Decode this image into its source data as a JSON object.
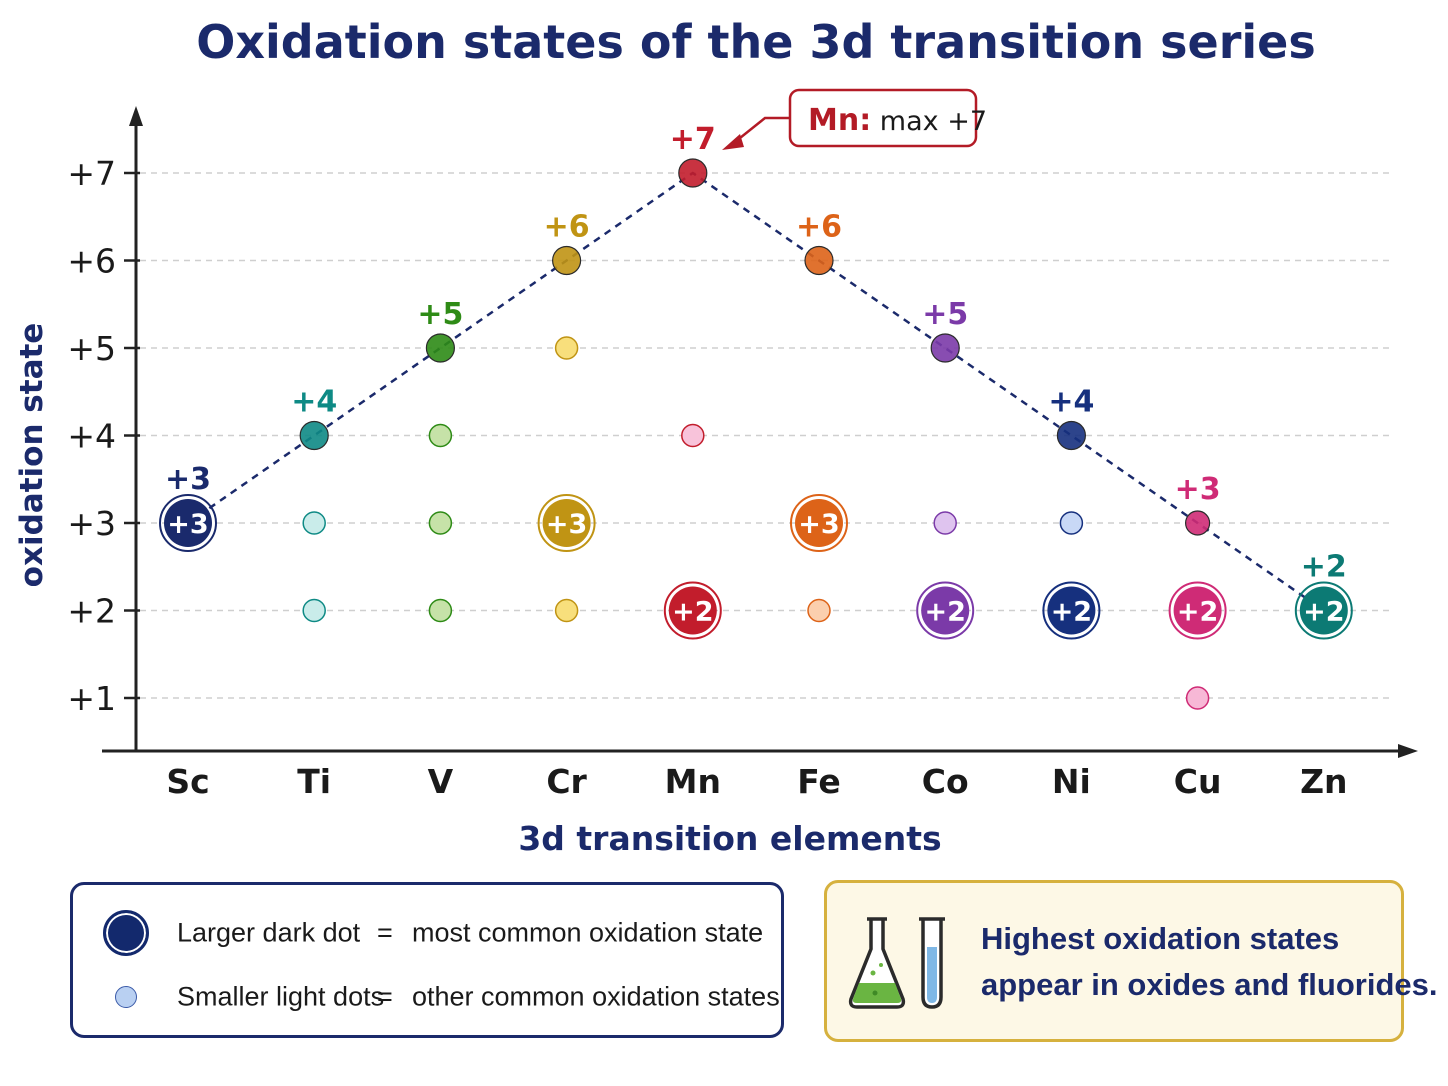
{
  "chart_data": {
    "type": "scatter",
    "title": "Oxidation states of the 3d transition series",
    "xlabel": "3d transition elements",
    "ylabel": "oxidation state",
    "categories": [
      "Sc",
      "Ti",
      "V",
      "Cr",
      "Mn",
      "Fe",
      "Co",
      "Ni",
      "Cu",
      "Zn"
    ],
    "y_ticks": [
      "+1",
      "+2",
      "+3",
      "+4",
      "+5",
      "+6",
      "+7"
    ],
    "ylim": [
      1,
      7
    ],
    "grid": true,
    "elements": [
      {
        "symbol": "Sc",
        "color": "#1a2a6c",
        "light": "#b8c4e8",
        "most_common": 3,
        "max": 3,
        "max_label": "+3",
        "other_states": []
      },
      {
        "symbol": "Ti",
        "color": "#0e8a85",
        "light": "#c9ecea",
        "most_common": null,
        "max": 4,
        "max_label": "+4",
        "other_states": [
          3,
          2
        ]
      },
      {
        "symbol": "V",
        "color": "#2e8b16",
        "light": "#c6e2a8",
        "most_common": null,
        "max": 5,
        "max_label": "+5",
        "other_states": [
          4,
          3,
          2
        ]
      },
      {
        "symbol": "Cr",
        "color": "#c09414",
        "light": "#f8df7c",
        "most_common": 3,
        "max": 6,
        "max_label": "+6",
        "other_states": [
          5,
          2
        ]
      },
      {
        "symbol": "Mn",
        "color": "#c21d2c",
        "light": "#f8c3da",
        "most_common": 2,
        "max": 7,
        "max_label": "+7",
        "other_states": [
          4
        ]
      },
      {
        "symbol": "Fe",
        "color": "#dd6318",
        "light": "#fbcfae",
        "most_common": 3,
        "max": 6,
        "max_label": "+6",
        "other_states": [
          2
        ]
      },
      {
        "symbol": "Co",
        "color": "#7b3aa8",
        "light": "#dfc4ef",
        "most_common": 2,
        "max": 5,
        "max_label": "+5",
        "other_states": [
          3
        ]
      },
      {
        "symbol": "Ni",
        "color": "#16307e",
        "light": "#c8d8f6",
        "most_common": 2,
        "max": 4,
        "max_label": "+4",
        "other_states": [
          3
        ]
      },
      {
        "symbol": "Cu",
        "color": "#cf2b76",
        "light": "#f7b8d6",
        "most_common": 2,
        "max": 3,
        "max_label": "+3",
        "other_states": [
          1
        ]
      },
      {
        "symbol": "Zn",
        "color": "#0c7a74",
        "light": "#c9ecea",
        "most_common": 2,
        "max": 2,
        "max_label": "+2",
        "other_states": []
      }
    ],
    "annotation": {
      "target": "Mn",
      "bold": "Mn:",
      "text": " max +7",
      "color": "#b31b26"
    }
  },
  "legend": {
    "row1_label": "Larger dark dot",
    "row1_eq": "=",
    "row1_desc": "most common oxidation state",
    "row2_label": "Smaller light dots",
    "row2_eq": "=",
    "row2_desc": "other common oxidation states",
    "dark_color": "#13296d",
    "light_color": "#b9d0f2"
  },
  "note": {
    "line1": "Highest  oxidation states",
    "line2": "appear in oxides and fluorides.",
    "icons": [
      "flask-icon",
      "test-tube-icon"
    ]
  }
}
